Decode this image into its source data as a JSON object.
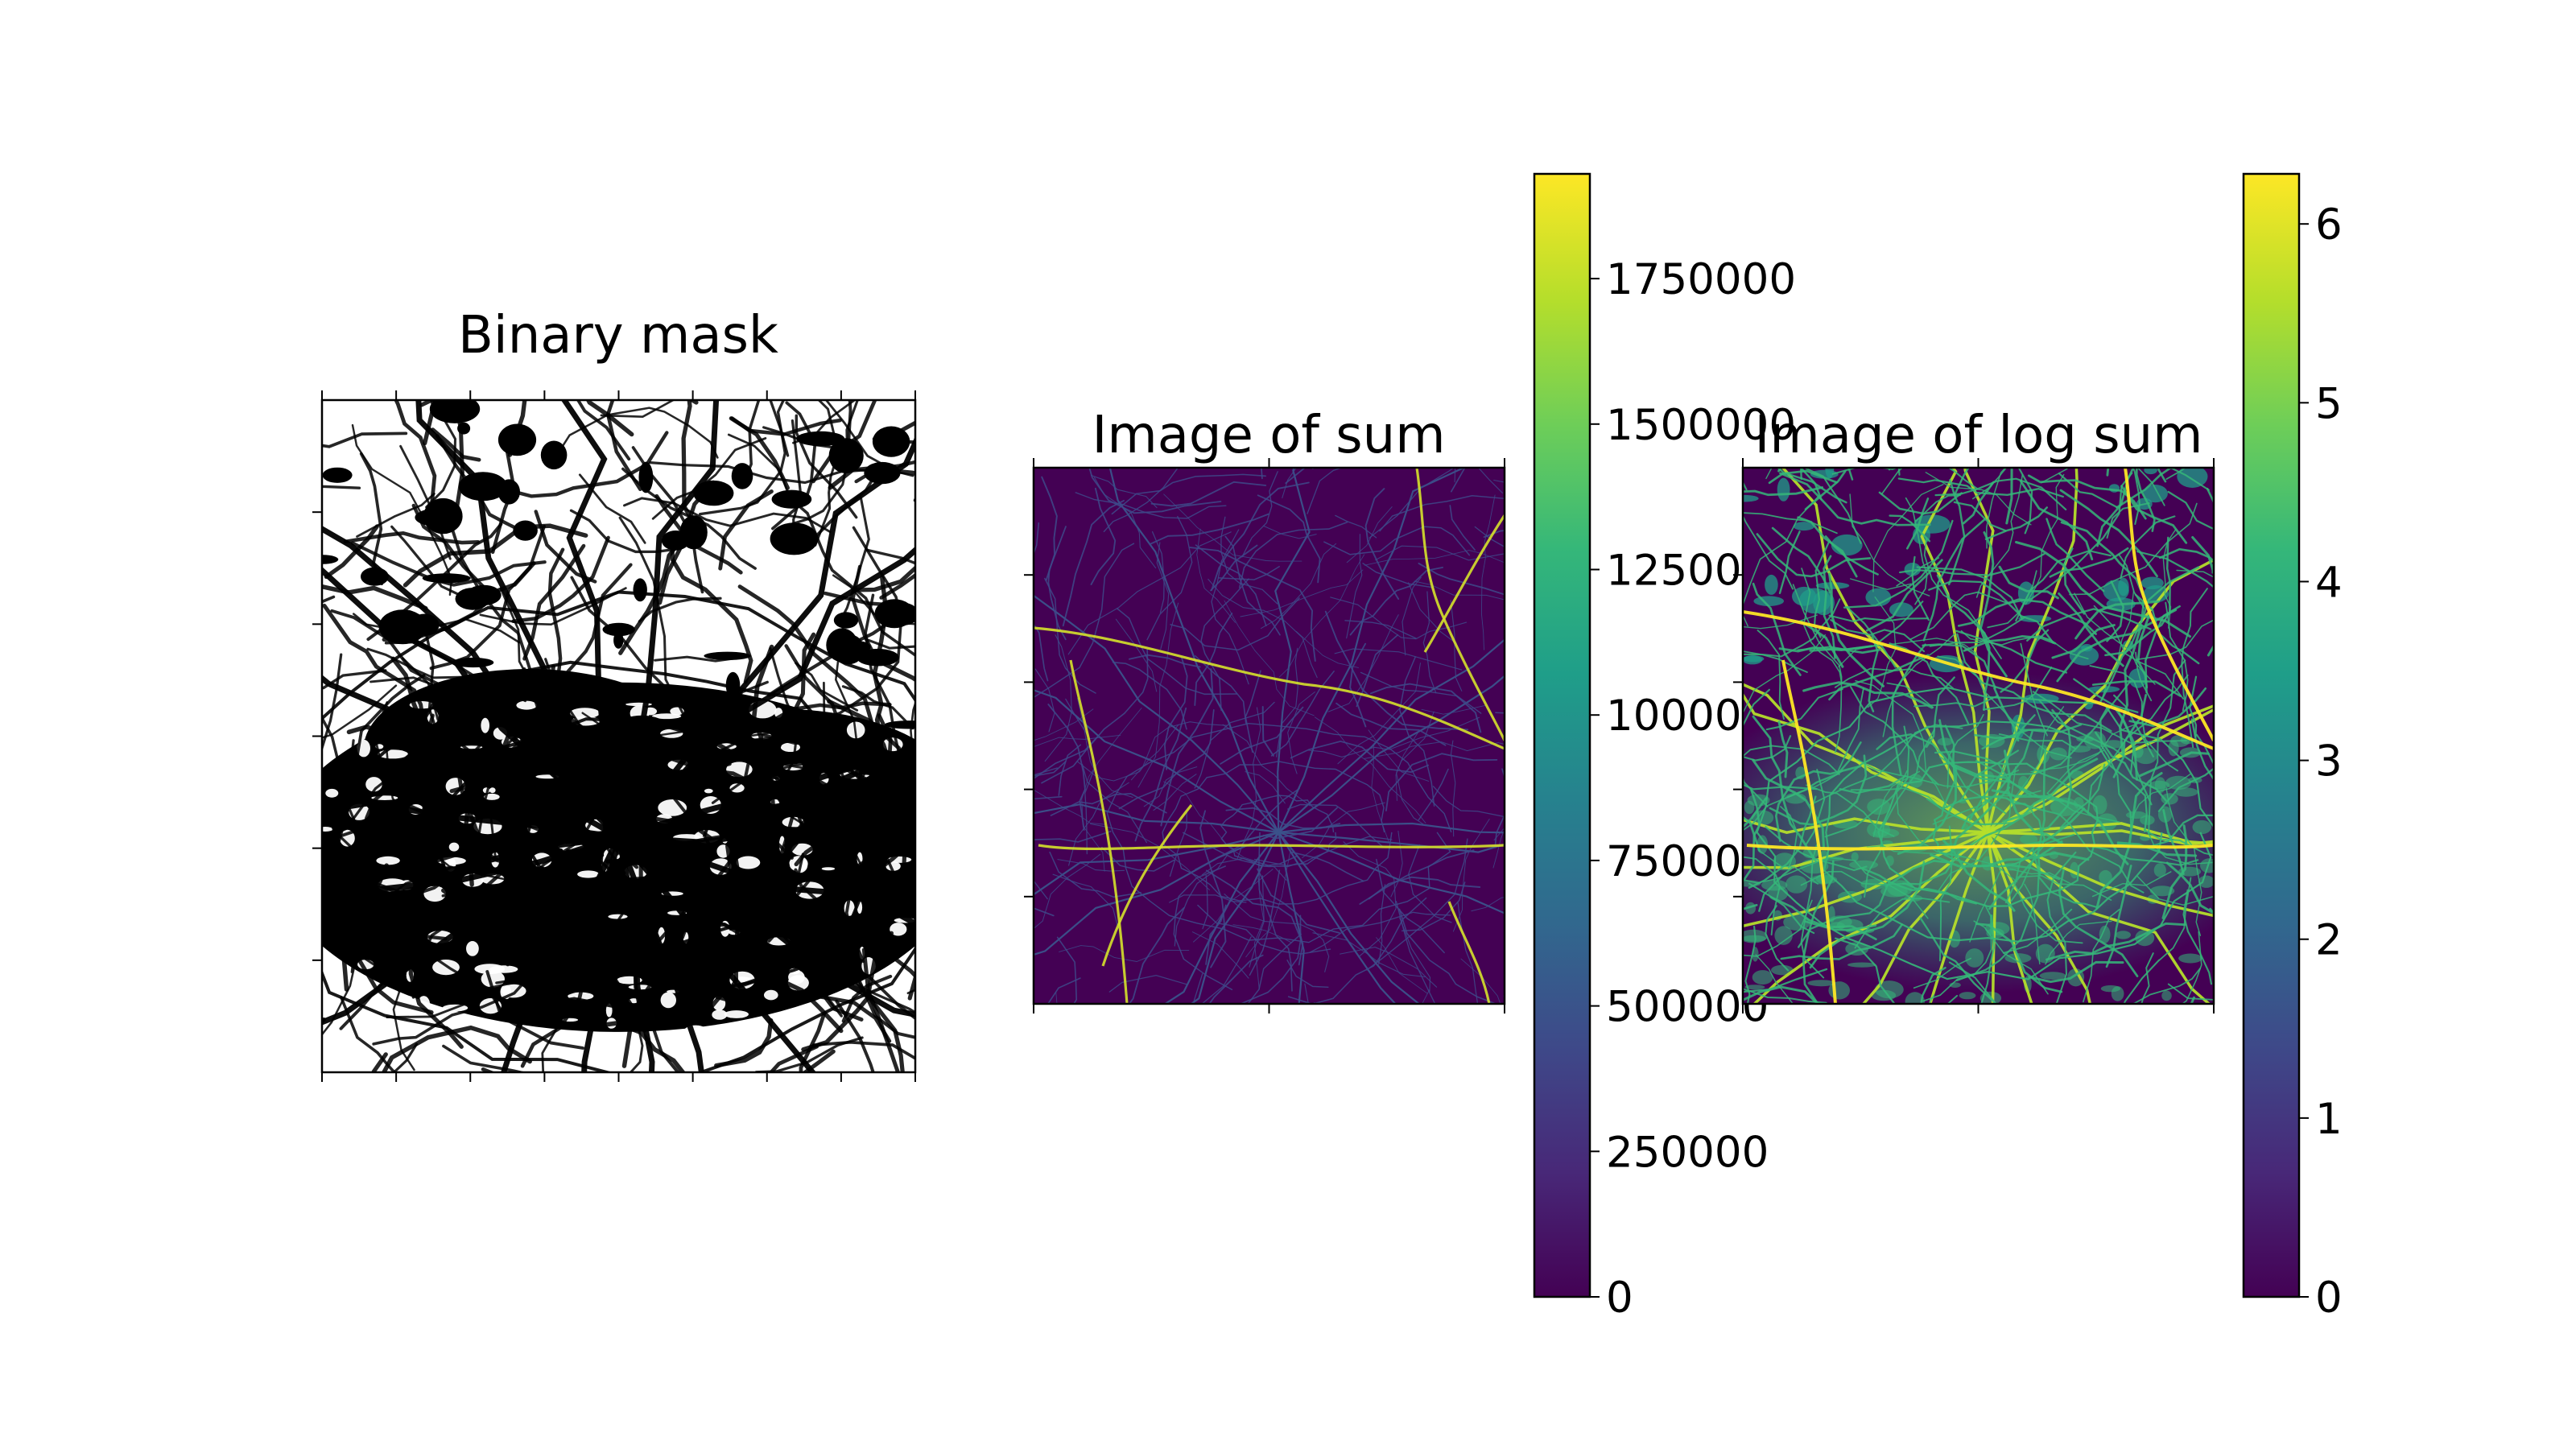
{
  "chart_data": [
    {
      "type": "image",
      "title": "Binary mask",
      "colormap": "binary",
      "x_ticks_shown": 9,
      "y_ticks_shown": 5,
      "tick_labels_visible": false
    },
    {
      "type": "heatmap",
      "title": "Image of sum",
      "colormap": "viridis",
      "colorbar": {
        "min": 0,
        "max": 1930000,
        "ticks": [
          0,
          250000,
          500000,
          750000,
          1000000,
          1250000,
          1500000,
          1750000
        ],
        "tick_labels": [
          "0",
          "250000",
          "500000",
          "750000",
          "1000000",
          "1250000",
          "1500000",
          "1750000"
        ]
      },
      "tick_labels_visible": false
    },
    {
      "type": "heatmap",
      "title": "Image of log sum",
      "colormap": "viridis",
      "colorbar": {
        "min": 0,
        "max": 6.28,
        "ticks": [
          0,
          1,
          2,
          3,
          4,
          5,
          6
        ],
        "tick_labels": [
          "0",
          "1",
          "2",
          "3",
          "4",
          "5",
          "6"
        ]
      },
      "tick_labels_visible": false
    }
  ],
  "colors": {
    "viridis": [
      "#440154",
      "#482878",
      "#3e4989",
      "#31688e",
      "#26828e",
      "#1f9e89",
      "#35b779",
      "#6ece58",
      "#b5de2b",
      "#fde725"
    ],
    "road_dark": "#3b528b",
    "road_bright": "#d6e22b"
  }
}
